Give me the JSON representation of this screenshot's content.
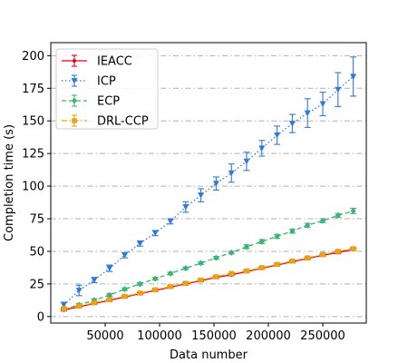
{
  "chart_data": {
    "type": "line",
    "xlabel": "Data number",
    "ylabel": "Completion time (s)",
    "xlim": [
      0,
      290000
    ],
    "ylim": [
      -5,
      210
    ],
    "x_ticks": [
      50000,
      100000,
      150000,
      200000,
      250000
    ],
    "x_tick_labels": [
      "50000",
      "100000",
      "150000",
      "200000",
      "250000"
    ],
    "y_ticks": [
      0,
      25,
      50,
      75,
      100,
      125,
      150,
      175,
      200
    ],
    "y_tick_labels": [
      "0",
      "25",
      "50",
      "75",
      "100",
      "125",
      "150",
      "175",
      "200"
    ],
    "grid": "horizontal dash-dot",
    "legend_position": "top-left",
    "x": [
      12000,
      26000,
      40000,
      54000,
      68000,
      82000,
      96000,
      110000,
      124000,
      138000,
      152000,
      166000,
      180000,
      194000,
      208000,
      222000,
      236000,
      250000,
      264000,
      278000
    ],
    "series": [
      {
        "name": "IEACC",
        "color": "#e8000b",
        "line_style": "solid",
        "marker": "point",
        "values": [
          5,
          7.5,
          10,
          12.5,
          15,
          17.5,
          20,
          22.5,
          25,
          27.5,
          30,
          32,
          34.5,
          37,
          39.5,
          42,
          44.5,
          47,
          49,
          51.5
        ],
        "errors": [
          0.8,
          0.8,
          0.8,
          0.8,
          0.8,
          0.8,
          0.8,
          0.8,
          0.8,
          0.8,
          0.8,
          0.8,
          0.8,
          0.8,
          0.8,
          0.8,
          0.8,
          0.8,
          0.8,
          0.8
        ]
      },
      {
        "name": "ICP",
        "color": "#2e7bd6",
        "line_style": "dotted",
        "marker": "triangle-down",
        "values": [
          9,
          20,
          28,
          37,
          47,
          56,
          64,
          73,
          84,
          93,
          102,
          110,
          119,
          129,
          139,
          148,
          156,
          163,
          174,
          184
        ],
        "errors": [
          2,
          4,
          2,
          2.5,
          2,
          2,
          2,
          2,
          4,
          5,
          5,
          7,
          7,
          6,
          7,
          7,
          11,
          9,
          13,
          15
        ]
      },
      {
        "name": "ECP",
        "color": "#3cb371",
        "line_style": "dashed",
        "marker": "diamond",
        "values": [
          5.5,
          9,
          12.5,
          16.5,
          21,
          25,
          29,
          33,
          37,
          41,
          45,
          49,
          53.5,
          57.5,
          61.5,
          65.5,
          70,
          73.5,
          77.5,
          81
        ],
        "errors": [
          1,
          1,
          1,
          1,
          1,
          1,
          1,
          1,
          1,
          1,
          1,
          1,
          1.5,
          1.5,
          1.5,
          1.5,
          1.5,
          1.5,
          1.5,
          2
        ]
      },
      {
        "name": "DRL-CCP",
        "color": "#e8a317",
        "line_style": "dash-dot",
        "marker": "square",
        "values": [
          6,
          8,
          10.5,
          13,
          15.5,
          18,
          20.5,
          23,
          25.5,
          28,
          30.5,
          33,
          35,
          37.5,
          40,
          42.5,
          45,
          47.5,
          50,
          52
        ],
        "errors": [
          1,
          1,
          1,
          1,
          1,
          1,
          1,
          1,
          1,
          1,
          1,
          1,
          1,
          1,
          1,
          1,
          1,
          1,
          1,
          1
        ]
      }
    ]
  }
}
